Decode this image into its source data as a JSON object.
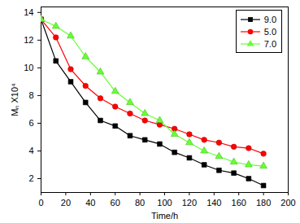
{
  "chart_data": {
    "type": "line",
    "x_label": "Time/h",
    "y_label": "Mₙ X10⁴",
    "x": [
      0,
      12,
      24,
      36,
      48,
      60,
      72,
      84,
      96,
      108,
      120,
      132,
      144,
      156,
      168,
      180
    ],
    "series": [
      {
        "name": "9.0",
        "color": "#000000",
        "marker": "square",
        "values": [
          13.5,
          10.5,
          9.0,
          7.5,
          6.2,
          5.8,
          5.1,
          4.8,
          4.5,
          3.9,
          3.5,
          3.0,
          2.6,
          2.4,
          2.0,
          1.5
        ]
      },
      {
        "name": "5.0",
        "color": "#ff0000",
        "marker": "circle",
        "values": [
          13.5,
          12.2,
          9.9,
          8.7,
          7.8,
          7.2,
          6.7,
          6.2,
          5.9,
          5.6,
          5.2,
          4.8,
          4.6,
          4.3,
          4.2,
          3.8
        ]
      },
      {
        "name": "7.0",
        "color": "#66ff33",
        "marker": "triangle",
        "values": [
          13.5,
          13.0,
          12.3,
          10.8,
          9.7,
          8.3,
          7.5,
          6.7,
          6.2,
          5.2,
          4.6,
          4.0,
          3.6,
          3.2,
          3.0,
          2.9
        ]
      }
    ],
    "xlim": [
      0,
      200
    ],
    "xticks": [
      0,
      20,
      40,
      60,
      80,
      100,
      120,
      140,
      160,
      180,
      200
    ],
    "ylim": [
      1,
      14.4
    ],
    "yticks": [
      2,
      4,
      6,
      8,
      10,
      12,
      14
    ],
    "grid": false,
    "legend": "top-right"
  }
}
